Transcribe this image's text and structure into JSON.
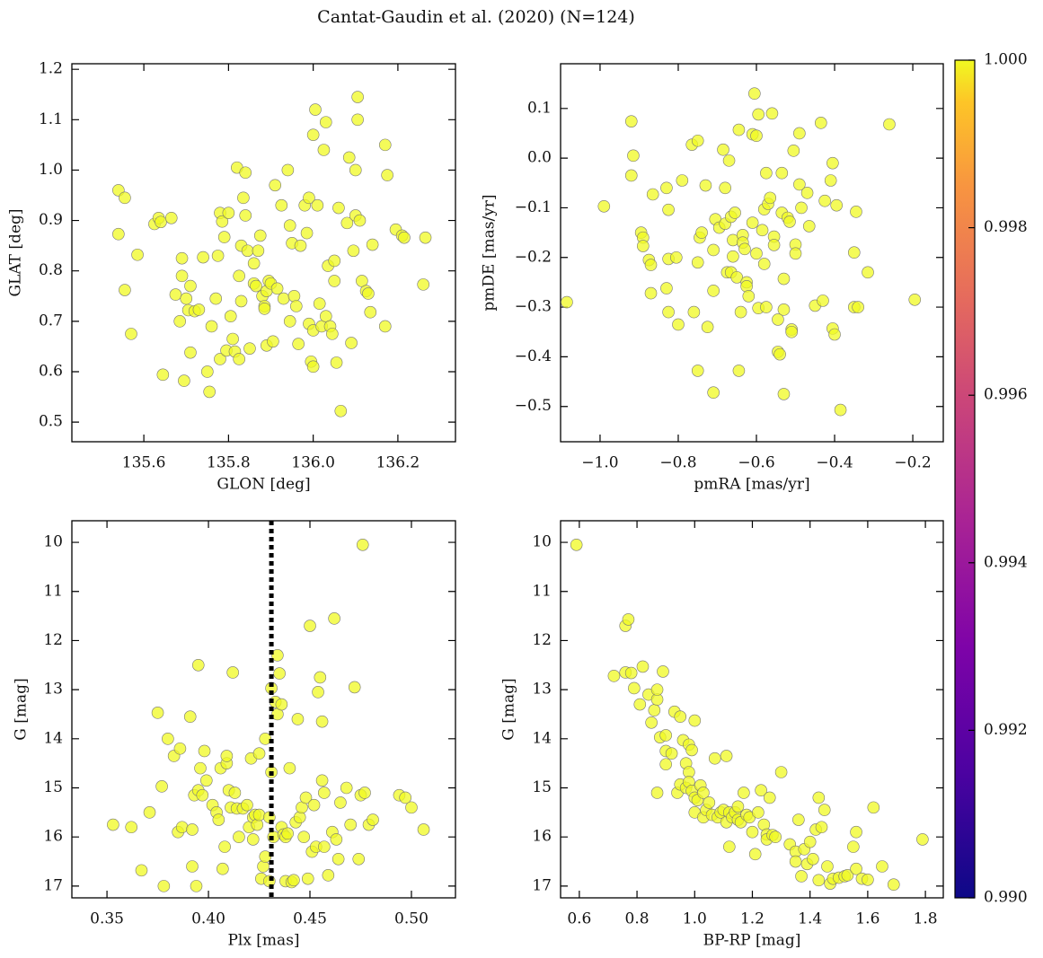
{
  "title": "Cantat-Gaudin et al. (2020) (N=124)",
  "chart_data": [
    {
      "type": "scatter",
      "xlabel": "GLON [deg]",
      "ylabel": "GLAT [deg]",
      "color": "#f0f921",
      "xlim": [
        135.43,
        136.336
      ],
      "ylim": [
        0.461,
        1.211
      ],
      "xticks": [
        135.6,
        135.8,
        {
          "value": 136.0,
          "label": "136.0"
        },
        136.2
      ],
      "yticks": [
        0.5,
        0.6,
        0.7,
        0.8,
        0.9,
        {
          "value": 1.0,
          "label": "1.0"
        },
        1.1,
        1.2
      ],
      "x": [
        135.54,
        135.555,
        135.54,
        135.555,
        135.57,
        135.585,
        135.625,
        135.635,
        135.64,
        135.645,
        135.665,
        135.675,
        135.69,
        135.69,
        135.685,
        135.695,
        135.7,
        135.705,
        135.71,
        135.71,
        135.72,
        135.73,
        135.74,
        135.75,
        135.755,
        135.76,
        135.77,
        135.775,
        135.78,
        135.78,
        135.785,
        135.79,
        135.795,
        135.8,
        135.805,
        135.81,
        135.815,
        135.82,
        135.825,
        135.825,
        135.83,
        135.83,
        135.835,
        135.84,
        135.84,
        135.845,
        135.85,
        135.86,
        135.86,
        135.865,
        135.87,
        135.875,
        135.88,
        135.885,
        135.885,
        135.89,
        135.89,
        135.895,
        135.9,
        135.905,
        135.91,
        135.915,
        135.925,
        135.93,
        135.94,
        135.945,
        135.945,
        135.95,
        135.955,
        135.96,
        135.965,
        135.97,
        135.98,
        135.985,
        135.99,
        135.99,
        135.995,
        136.0,
        136.0,
        136.0,
        136.005,
        136.01,
        136.015,
        136.02,
        136.025,
        136.03,
        136.03,
        136.035,
        136.04,
        136.045,
        136.05,
        136.05,
        136.055,
        136.06,
        136.065,
        136.08,
        136.085,
        136.09,
        136.095,
        136.1,
        136.1,
        136.105,
        136.105,
        136.11,
        136.115,
        136.125,
        136.13,
        136.135,
        136.14,
        136.17,
        136.17,
        136.175,
        136.195,
        136.21,
        136.215,
        136.26,
        136.265
      ],
      "y": [
        0.96,
        0.945,
        0.873,
        0.762,
        0.675,
        0.832,
        0.893,
        0.905,
        0.897,
        0.594,
        0.905,
        0.753,
        0.79,
        0.825,
        0.7,
        0.582,
        0.745,
        0.722,
        0.638,
        0.77,
        0.72,
        0.723,
        0.827,
        0.6,
        0.56,
        0.69,
        0.745,
        0.83,
        0.625,
        0.915,
        0.898,
        0.867,
        0.642,
        0.915,
        0.71,
        0.665,
        0.64,
        1.005,
        0.79,
        0.625,
        0.74,
        0.85,
        0.945,
        0.995,
        0.91,
        0.84,
        0.646,
        0.815,
        0.775,
        0.77,
        0.84,
        0.87,
        0.75,
        0.73,
        0.725,
        0.76,
        0.652,
        0.78,
        0.775,
        0.66,
        0.97,
        0.765,
        0.93,
        0.745,
        1.0,
        0.89,
        0.7,
        0.855,
        0.75,
        0.73,
        0.655,
        0.85,
        0.93,
        0.875,
        0.945,
        0.695,
        0.62,
        0.61,
        0.682,
        1.07,
        1.12,
        0.93,
        0.735,
        0.69,
        1.04,
        0.71,
        1.095,
        0.81,
        0.69,
        0.675,
        0.78,
        0.82,
        0.618,
        0.925,
        0.522,
        0.895,
        1.025,
        0.657,
        0.84,
        1.0,
        0.91,
        1.1,
        1.145,
        0.9,
        0.78,
        0.76,
        0.755,
        0.718,
        0.852,
        0.69,
        1.05,
        0.99,
        0.882,
        0.87,
        0.866,
        0.773,
        0.866
      ]
    },
    {
      "type": "scatter",
      "xlabel": "pmRA [mas/yr]",
      "ylabel": "pmDE [mas/yr]",
      "color": "#f0f921",
      "xlim": [
        -1.101,
        -0.122
      ],
      "ylim": [
        -0.571,
        0.19
      ],
      "xticks": [
        {
          "value": -1.0,
          "label": "−1.0"
        },
        {
          "value": -0.8,
          "label": "−0.8"
        },
        {
          "value": -0.6,
          "label": "−0.6"
        },
        {
          "value": -0.4,
          "label": "−0.4"
        },
        {
          "value": -0.2,
          "label": "−0.2"
        }
      ],
      "yticks": [
        {
          "value": -0.5,
          "label": "−0.5"
        },
        {
          "value": -0.4,
          "label": "−0.4"
        },
        {
          "value": -0.3,
          "label": "−0.3"
        },
        {
          "value": -0.2,
          "label": "−0.2"
        },
        {
          "value": -0.1,
          "label": "−0.1"
        },
        {
          "value": 0.0,
          "label": "0.0"
        },
        0.1
      ],
      "x": [
        -1.085,
        -0.99,
        -0.92,
        -0.92,
        -0.915,
        -0.895,
        -0.89,
        -0.89,
        -0.875,
        -0.87,
        -0.87,
        -0.865,
        -0.83,
        -0.825,
        -0.825,
        -0.83,
        -0.825,
        -0.8,
        -0.805,
        -0.79,
        -0.765,
        -0.76,
        -0.75,
        -0.75,
        -0.75,
        -0.745,
        -0.74,
        -0.73,
        -0.725,
        -0.71,
        -0.71,
        -0.71,
        -0.705,
        -0.695,
        -0.685,
        -0.68,
        -0.68,
        -0.675,
        -0.67,
        -0.665,
        -0.665,
        -0.66,
        -0.66,
        -0.655,
        -0.65,
        -0.645,
        -0.645,
        -0.64,
        -0.635,
        -0.635,
        -0.63,
        -0.625,
        -0.625,
        -0.62,
        -0.61,
        -0.61,
        -0.605,
        -0.6,
        -0.595,
        -0.6,
        -0.595,
        -0.585,
        -0.58,
        -0.58,
        -0.575,
        -0.575,
        -0.57,
        -0.565,
        -0.56,
        -0.555,
        -0.555,
        -0.545,
        -0.545,
        -0.54,
        -0.535,
        -0.535,
        -0.53,
        -0.53,
        -0.53,
        -0.52,
        -0.515,
        -0.51,
        -0.51,
        -0.505,
        -0.5,
        -0.5,
        -0.49,
        -0.49,
        -0.485,
        -0.47,
        -0.465,
        -0.45,
        -0.435,
        -0.43,
        -0.425,
        -0.41,
        -0.405,
        -0.405,
        -0.4,
        -0.395,
        -0.385,
        -0.35,
        -0.35,
        -0.345,
        -0.34,
        -0.315,
        -0.26,
        -0.195
      ],
      "y": [
        -0.29,
        -0.097,
        0.074,
        -0.035,
        0.005,
        -0.15,
        -0.16,
        -0.177,
        -0.205,
        -0.215,
        -0.272,
        -0.073,
        -0.06,
        -0.104,
        -0.203,
        -0.262,
        -0.31,
        -0.335,
        -0.2,
        -0.045,
        0.027,
        -0.31,
        0.035,
        -0.428,
        -0.21,
        -0.16,
        -0.15,
        -0.055,
        -0.34,
        -0.472,
        -0.267,
        -0.185,
        -0.123,
        -0.14,
        0.017,
        -0.06,
        -0.132,
        -0.23,
        -0.005,
        -0.118,
        -0.23,
        -0.165,
        -0.198,
        -0.11,
        -0.24,
        0.057,
        -0.428,
        -0.31,
        -0.155,
        -0.17,
        -0.183,
        -0.25,
        -0.258,
        -0.278,
        0.048,
        -0.13,
        0.13,
        0.045,
        0.088,
        -0.192,
        -0.302,
        -0.145,
        -0.103,
        -0.213,
        -0.3,
        -0.03,
        -0.092,
        -0.08,
        0.09,
        -0.158,
        -0.175,
        -0.325,
        -0.39,
        -0.395,
        -0.03,
        -0.11,
        -0.243,
        -0.305,
        -0.475,
        -0.12,
        -0.128,
        -0.345,
        -0.35,
        0.015,
        -0.174,
        -0.192,
        0.05,
        -0.053,
        -0.1,
        -0.07,
        -0.137,
        -0.297,
        0.071,
        -0.287,
        -0.086,
        -0.045,
        -0.01,
        -0.343,
        -0.355,
        -0.095,
        -0.507,
        -0.3,
        -0.19,
        -0.108,
        -0.3,
        -0.23,
        0.068,
        -0.285
      ]
    },
    {
      "type": "scatter",
      "xlabel": "Plx [mas]",
      "ylabel": "G [mag]",
      "color": "#f0f921",
      "vline": 0.431,
      "xlim": [
        0.3327,
        0.5217
      ],
      "ylim": [
        17.24,
        9.56
      ],
      "xticks": [
        0.35,
        {
          "value": 0.4,
          "label": "0.40"
        },
        0.45,
        {
          "value": 0.5,
          "label": "0.50"
        }
      ],
      "yticks": [
        10,
        11,
        12,
        13,
        14,
        15,
        16,
        17
      ],
      "x": [
        0.353,
        0.362,
        0.367,
        0.371,
        0.375,
        0.377,
        0.378,
        0.38,
        0.383,
        0.385,
        0.386,
        0.387,
        0.391,
        0.392,
        0.392,
        0.393,
        0.394,
        0.395,
        0.395,
        0.396,
        0.397,
        0.398,
        0.399,
        0.402,
        0.404,
        0.405,
        0.406,
        0.407,
        0.408,
        0.409,
        0.409,
        0.41,
        0.411,
        0.412,
        0.413,
        0.414,
        0.415,
        0.417,
        0.419,
        0.42,
        0.421,
        0.422,
        0.422,
        0.423,
        0.424,
        0.425,
        0.425,
        0.426,
        0.427,
        0.428,
        0.428,
        0.43,
        0.43,
        0.431,
        0.431,
        0.432,
        0.433,
        0.434,
        0.434,
        0.435,
        0.436,
        0.436,
        0.437,
        0.438,
        0.438,
        0.439,
        0.44,
        0.441,
        0.442,
        0.443,
        0.444,
        0.445,
        0.446,
        0.447,
        0.448,
        0.449,
        0.45,
        0.451,
        0.452,
        0.453,
        0.454,
        0.455,
        0.456,
        0.456,
        0.457,
        0.457,
        0.459,
        0.461,
        0.462,
        0.463,
        0.464,
        0.465,
        0.468,
        0.47,
        0.472,
        0.474,
        0.475,
        0.476,
        0.477,
        0.479,
        0.481,
        0.494,
        0.497,
        0.5,
        0.506
      ],
      "y": [
        15.75,
        15.8,
        16.68,
        15.5,
        13.47,
        14.97,
        17.0,
        14.0,
        14.35,
        15.9,
        14.2,
        15.8,
        13.55,
        15.85,
        16.6,
        15.15,
        17.0,
        12.5,
        15.05,
        14.6,
        15.15,
        14.25,
        14.85,
        15.35,
        15.5,
        15.65,
        14.6,
        16.65,
        16.2,
        14.5,
        14.35,
        15.05,
        15.4,
        12.65,
        15.1,
        15.42,
        16.0,
        15.42,
        15.35,
        15.8,
        14.4,
        15.6,
        16.05,
        15.55,
        15.75,
        15.55,
        14.3,
        16.85,
        16.6,
        16.4,
        14.0,
        15.6,
        16.9,
        12.97,
        14.68,
        16.0,
        13.25,
        13.5,
        12.3,
        12.67,
        13.3,
        15.8,
        15.95,
        16.0,
        16.9,
        15.93,
        14.6,
        16.92,
        16.88,
        15.7,
        13.6,
        15.6,
        15.4,
        16.0,
        15.2,
        16.85,
        11.7,
        16.3,
        15.35,
        16.2,
        13.05,
        12.75,
        14.85,
        13.65,
        16.2,
        15.1,
        16.78,
        15.9,
        11.55,
        16.05,
        16.45,
        15.3,
        15.0,
        15.75,
        12.95,
        16.45,
        15.15,
        10.05,
        15.1,
        15.75,
        15.65,
        15.15,
        15.2,
        15.4,
        15.85
      ]
    },
    {
      "type": "scatter",
      "xlabel": "BP-RP [mag]",
      "ylabel": "G [mag]",
      "color": "#f0f921",
      "xlim": [
        0.535,
        1.862
      ],
      "ylim": [
        17.24,
        9.56
      ],
      "xticks": [
        0.6,
        0.8,
        {
          "value": 1.0,
          "label": "1.0"
        },
        1.2,
        1.4,
        1.6,
        1.8
      ],
      "yticks": [
        10,
        11,
        12,
        13,
        14,
        15,
        16,
        17
      ],
      "x": [
        0.59,
        0.72,
        0.76,
        0.77,
        0.76,
        0.78,
        0.79,
        0.81,
        0.82,
        0.84,
        0.85,
        0.86,
        0.87,
        0.87,
        0.87,
        0.89,
        0.88,
        0.9,
        0.9,
        0.9,
        0.92,
        0.93,
        0.94,
        0.95,
        0.95,
        0.96,
        0.97,
        0.97,
        0.98,
        0.98,
        0.98,
        0.99,
        0.99,
        1.0,
        1.0,
        1.0,
        1.01,
        1.02,
        1.03,
        1.03,
        1.04,
        1.05,
        1.06,
        1.07,
        1.08,
        1.09,
        1.1,
        1.11,
        1.11,
        1.12,
        1.12,
        1.13,
        1.14,
        1.15,
        1.15,
        1.16,
        1.17,
        1.18,
        1.19,
        1.2,
        1.21,
        1.22,
        1.23,
        1.24,
        1.25,
        1.25,
        1.26,
        1.27,
        1.28,
        1.3,
        1.33,
        1.35,
        1.35,
        1.36,
        1.37,
        1.38,
        1.39,
        1.4,
        1.41,
        1.42,
        1.43,
        1.43,
        1.44,
        1.45,
        1.46,
        1.47,
        1.48,
        1.5,
        1.52,
        1.53,
        1.55,
        1.56,
        1.56,
        1.58,
        1.6,
        1.62,
        1.65,
        1.69,
        1.79
      ],
      "y": [
        10.05,
        12.72,
        11.7,
        11.57,
        12.65,
        12.66,
        12.97,
        13.3,
        12.53,
        13.1,
        13.67,
        13.42,
        13.2,
        13.0,
        15.1,
        12.63,
        13.97,
        14.25,
        13.93,
        14.52,
        14.3,
        13.45,
        15.1,
        13.55,
        14.93,
        14.03,
        14.5,
        15.0,
        14.12,
        14.68,
        14.88,
        14.23,
        15.06,
        13.63,
        15.5,
        15.2,
        15.25,
        14.95,
        15.1,
        15.6,
        15.45,
        15.3,
        15.55,
        14.4,
        15.6,
        15.5,
        15.45,
        14.35,
        15.7,
        15.5,
        16.2,
        15.6,
        15.5,
        15.38,
        15.65,
        15.7,
        15.1,
        15.55,
        15.6,
        15.9,
        16.35,
        15.5,
        15.05,
        15.75,
        15.95,
        16.05,
        15.2,
        15.96,
        16.0,
        14.68,
        16.15,
        16.3,
        16.5,
        15.65,
        16.8,
        16.25,
        16.55,
        16.1,
        16.45,
        15.85,
        15.2,
        16.88,
        15.8,
        15.45,
        16.6,
        16.95,
        16.85,
        16.83,
        16.8,
        16.78,
        16.2,
        15.9,
        16.65,
        16.85,
        16.87,
        15.4,
        16.6,
        16.97,
        16.05
      ]
    }
  ],
  "colorbar": {
    "cmap": "plasma",
    "lim": [
      0.99,
      1.0
    ],
    "ticks": [
      {
        "value": 0.99,
        "label": "0.990"
      },
      0.992,
      0.994,
      0.996,
      0.998,
      {
        "value": 1.0,
        "label": "1.000"
      }
    ]
  }
}
